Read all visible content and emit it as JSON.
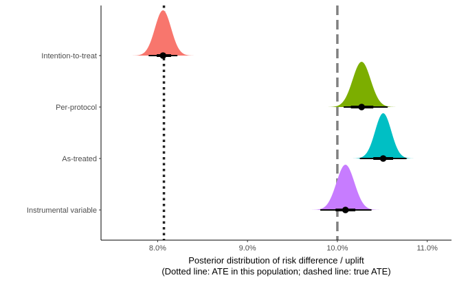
{
  "chart_data": {
    "type": "halfeye",
    "title": "",
    "xlabel": "Posterior distribution of risk difference / uplift",
    "xlabel2": "(Dotted line: ATE in this population; dashed line: true ATE)",
    "ylabel": "",
    "xlim": [
      0.0737,
      0.1127
    ],
    "xticks": [
      {
        "value": 0.08,
        "label": "8.0%"
      },
      {
        "value": 0.09,
        "label": "9.0%"
      },
      {
        "value": 0.1,
        "label": "10.0%"
      },
      {
        "value": 0.11,
        "label": "11.0%"
      }
    ],
    "reference_lines": [
      {
        "name": "ate-in-population",
        "value": 0.0807,
        "style": "dotted",
        "color": "#222222"
      },
      {
        "name": "true-ate",
        "value": 0.1,
        "style": "dashed",
        "color": "#808080"
      }
    ],
    "series": [
      {
        "name": "Intention-to-treat",
        "color": "#F8766D",
        "median": 0.0806,
        "sd": 0.0009,
        "min": 0.0771,
        "max": 0.0843,
        "interval_66": [
          0.0799,
          0.0815
        ],
        "interval_95": [
          0.079,
          0.0822
        ]
      },
      {
        "name": "Per-protocol",
        "color": "#7CAE00",
        "median": 0.1027,
        "sd": 0.001,
        "min": 0.0975,
        "max": 0.1081,
        "interval_66": [
          0.1015,
          0.104
        ],
        "interval_95": [
          0.1007,
          0.1056
        ]
      },
      {
        "name": "As-treated",
        "color": "#00BFC4",
        "median": 0.1051,
        "sd": 0.0009,
        "min": 0.1012,
        "max": 0.1092,
        "interval_66": [
          0.104,
          0.1062
        ],
        "interval_95": [
          0.1025,
          0.1077
        ]
      },
      {
        "name": "Instrumental variable",
        "color": "#C77CFF",
        "median": 0.1009,
        "sd": 0.001,
        "min": 0.0963,
        "max": 0.1058,
        "interval_66": [
          0.0998,
          0.102
        ],
        "interval_95": [
          0.0981,
          0.1038
        ]
      }
    ]
  }
}
